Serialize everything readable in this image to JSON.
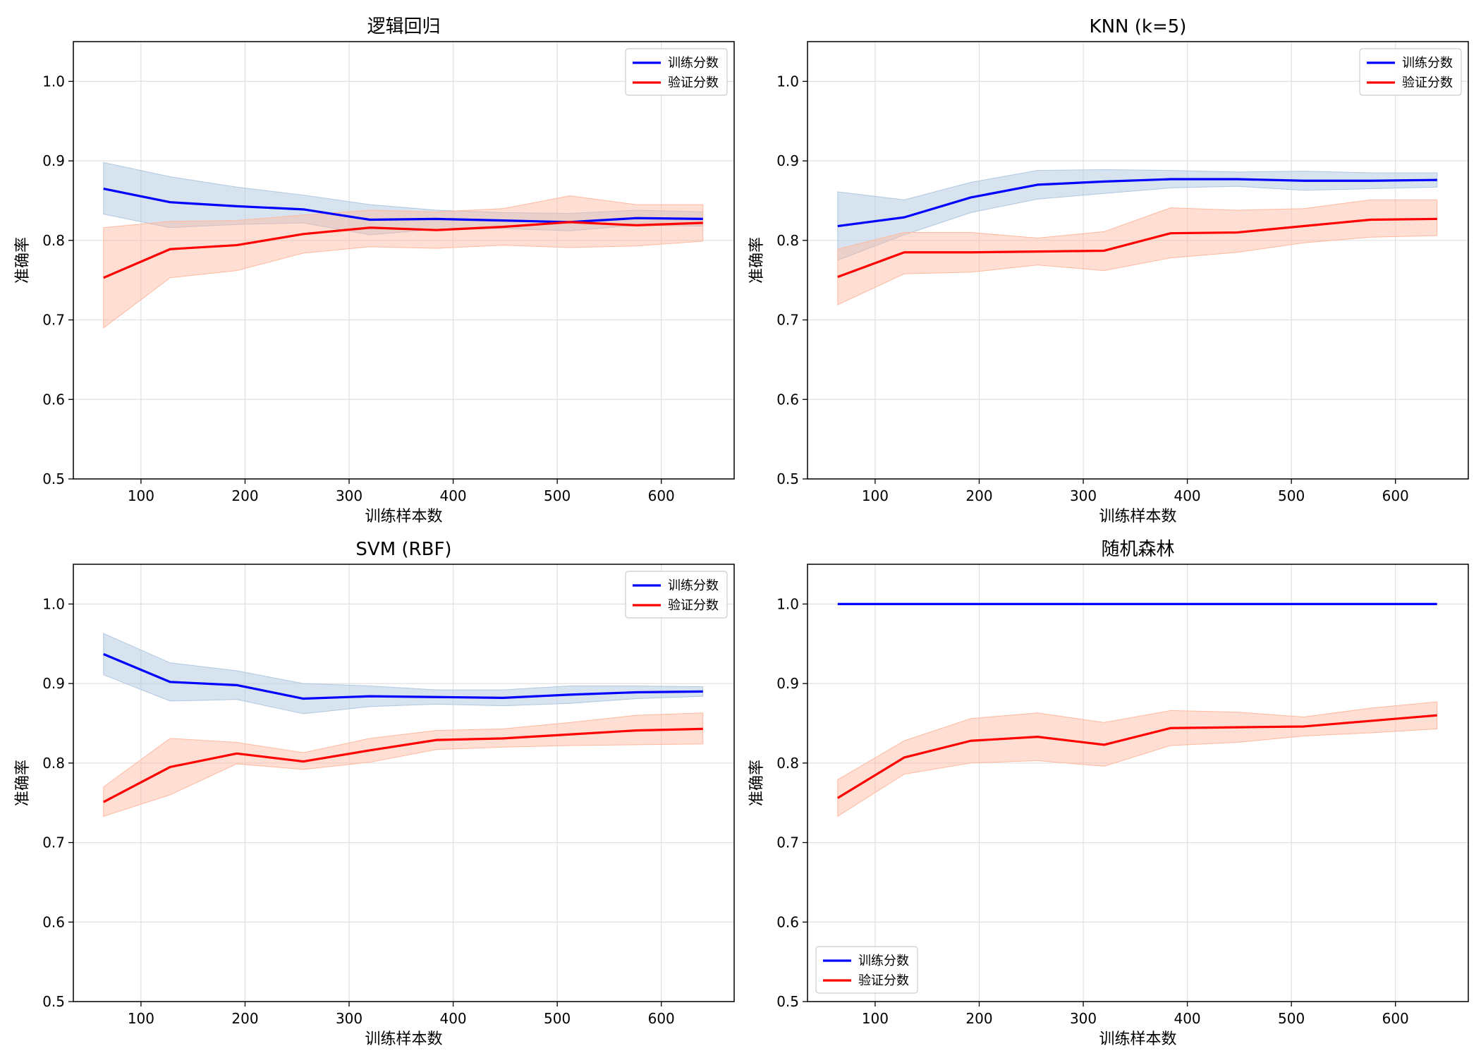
{
  "figure": {
    "background": "#ffffff"
  },
  "colors": {
    "train_line": "#0000ff",
    "val_line": "#ff0000",
    "train_band": "#b0c8e0",
    "val_band": "#ffb9a0",
    "grid": "#e0e0e0"
  },
  "chart_data": [
    {
      "type": "line",
      "title": "逻辑回归",
      "xlabel": "训练样本数",
      "ylabel": "准确率",
      "xlim": [
        35,
        670
      ],
      "ylim": [
        0.5,
        1.05
      ],
      "xticks": [
        100,
        200,
        300,
        400,
        500,
        600
      ],
      "yticks": [
        0.5,
        0.6,
        0.7,
        0.8,
        0.9,
        1.0
      ],
      "grid": true,
      "legend": "top-right",
      "x": [
        64,
        128,
        192,
        256,
        320,
        384,
        448,
        512,
        576,
        640
      ],
      "series": [
        {
          "name": "训练分数",
          "values": [
            0.865,
            0.848,
            0.843,
            0.839,
            0.826,
            0.827,
            0.825,
            0.823,
            0.828,
            0.827
          ],
          "upper": [
            0.898,
            0.88,
            0.867,
            0.857,
            0.845,
            0.838,
            0.835,
            0.834,
            0.838,
            0.836
          ],
          "lower": [
            0.833,
            0.816,
            0.82,
            0.822,
            0.807,
            0.814,
            0.815,
            0.812,
            0.819,
            0.818
          ]
        },
        {
          "name": "验证分数",
          "values": [
            0.753,
            0.789,
            0.794,
            0.808,
            0.816,
            0.813,
            0.817,
            0.823,
            0.819,
            0.822
          ],
          "upper": [
            0.816,
            0.824,
            0.825,
            0.832,
            0.838,
            0.836,
            0.84,
            0.856,
            0.845,
            0.845
          ],
          "lower": [
            0.69,
            0.753,
            0.762,
            0.784,
            0.792,
            0.79,
            0.794,
            0.791,
            0.793,
            0.799
          ]
        }
      ]
    },
    {
      "type": "line",
      "title": "KNN (k=5)",
      "xlabel": "训练样本数",
      "ylabel": "准确率",
      "xlim": [
        35,
        670
      ],
      "ylim": [
        0.5,
        1.05
      ],
      "xticks": [
        100,
        200,
        300,
        400,
        500,
        600
      ],
      "yticks": [
        0.5,
        0.6,
        0.7,
        0.8,
        0.9,
        1.0
      ],
      "grid": true,
      "legend": "top-right",
      "x": [
        64,
        128,
        192,
        256,
        320,
        384,
        448,
        512,
        576,
        640
      ],
      "series": [
        {
          "name": "训练分数",
          "values": [
            0.818,
            0.829,
            0.854,
            0.87,
            0.874,
            0.877,
            0.877,
            0.875,
            0.875,
            0.876
          ],
          "upper": [
            0.861,
            0.851,
            0.873,
            0.888,
            0.889,
            0.888,
            0.886,
            0.887,
            0.885,
            0.885
          ],
          "lower": [
            0.775,
            0.807,
            0.835,
            0.852,
            0.859,
            0.866,
            0.868,
            0.863,
            0.865,
            0.867
          ]
        },
        {
          "name": "验证分数",
          "values": [
            0.754,
            0.785,
            0.785,
            0.786,
            0.787,
            0.809,
            0.81,
            0.818,
            0.826,
            0.827
          ],
          "upper": [
            0.789,
            0.81,
            0.81,
            0.803,
            0.811,
            0.841,
            0.838,
            0.84,
            0.851,
            0.851
          ],
          "lower": [
            0.719,
            0.758,
            0.76,
            0.769,
            0.762,
            0.778,
            0.785,
            0.797,
            0.804,
            0.806
          ]
        }
      ]
    },
    {
      "type": "line",
      "title": "SVM (RBF)",
      "xlabel": "训练样本数",
      "ylabel": "准确率",
      "xlim": [
        35,
        670
      ],
      "ylim": [
        0.5,
        1.05
      ],
      "xticks": [
        100,
        200,
        300,
        400,
        500,
        600
      ],
      "yticks": [
        0.5,
        0.6,
        0.7,
        0.8,
        0.9,
        1.0
      ],
      "grid": true,
      "legend": "top-right",
      "x": [
        64,
        128,
        192,
        256,
        320,
        384,
        448,
        512,
        576,
        640
      ],
      "series": [
        {
          "name": "训练分数",
          "values": [
            0.937,
            0.902,
            0.898,
            0.881,
            0.884,
            0.883,
            0.882,
            0.886,
            0.889,
            0.89
          ],
          "upper": [
            0.963,
            0.926,
            0.916,
            0.9,
            0.897,
            0.892,
            0.892,
            0.897,
            0.897,
            0.896
          ],
          "lower": [
            0.911,
            0.878,
            0.88,
            0.862,
            0.871,
            0.874,
            0.872,
            0.875,
            0.881,
            0.884
          ]
        },
        {
          "name": "验证分数",
          "values": [
            0.751,
            0.795,
            0.812,
            0.802,
            0.816,
            0.829,
            0.831,
            0.836,
            0.841,
            0.843
          ],
          "upper": [
            0.77,
            0.831,
            0.826,
            0.813,
            0.831,
            0.841,
            0.843,
            0.851,
            0.86,
            0.863
          ],
          "lower": [
            0.733,
            0.76,
            0.799,
            0.792,
            0.801,
            0.817,
            0.82,
            0.822,
            0.823,
            0.824
          ]
        }
      ]
    },
    {
      "type": "line",
      "title": "随机森林",
      "xlabel": "训练样本数",
      "ylabel": "准确率",
      "xlim": [
        35,
        670
      ],
      "ylim": [
        0.5,
        1.05
      ],
      "xticks": [
        100,
        200,
        300,
        400,
        500,
        600
      ],
      "yticks": [
        0.5,
        0.6,
        0.7,
        0.8,
        0.9,
        1.0
      ],
      "grid": true,
      "legend": "bottom-left",
      "x": [
        64,
        128,
        192,
        256,
        320,
        384,
        448,
        512,
        576,
        640
      ],
      "series": [
        {
          "name": "训练分数",
          "values": [
            1.0,
            1.0,
            1.0,
            1.0,
            1.0,
            1.0,
            1.0,
            1.0,
            1.0,
            1.0
          ],
          "upper": [
            1.0,
            1.0,
            1.0,
            1.0,
            1.0,
            1.0,
            1.0,
            1.0,
            1.0,
            1.0
          ],
          "lower": [
            1.0,
            1.0,
            1.0,
            1.0,
            1.0,
            1.0,
            1.0,
            1.0,
            1.0,
            1.0
          ]
        },
        {
          "name": "验证分数",
          "values": [
            0.756,
            0.807,
            0.828,
            0.833,
            0.823,
            0.844,
            0.845,
            0.846,
            0.853,
            0.86
          ],
          "upper": [
            0.779,
            0.828,
            0.856,
            0.863,
            0.851,
            0.866,
            0.864,
            0.858,
            0.869,
            0.877
          ],
          "lower": [
            0.733,
            0.786,
            0.8,
            0.803,
            0.796,
            0.822,
            0.826,
            0.834,
            0.838,
            0.843
          ]
        }
      ]
    }
  ]
}
